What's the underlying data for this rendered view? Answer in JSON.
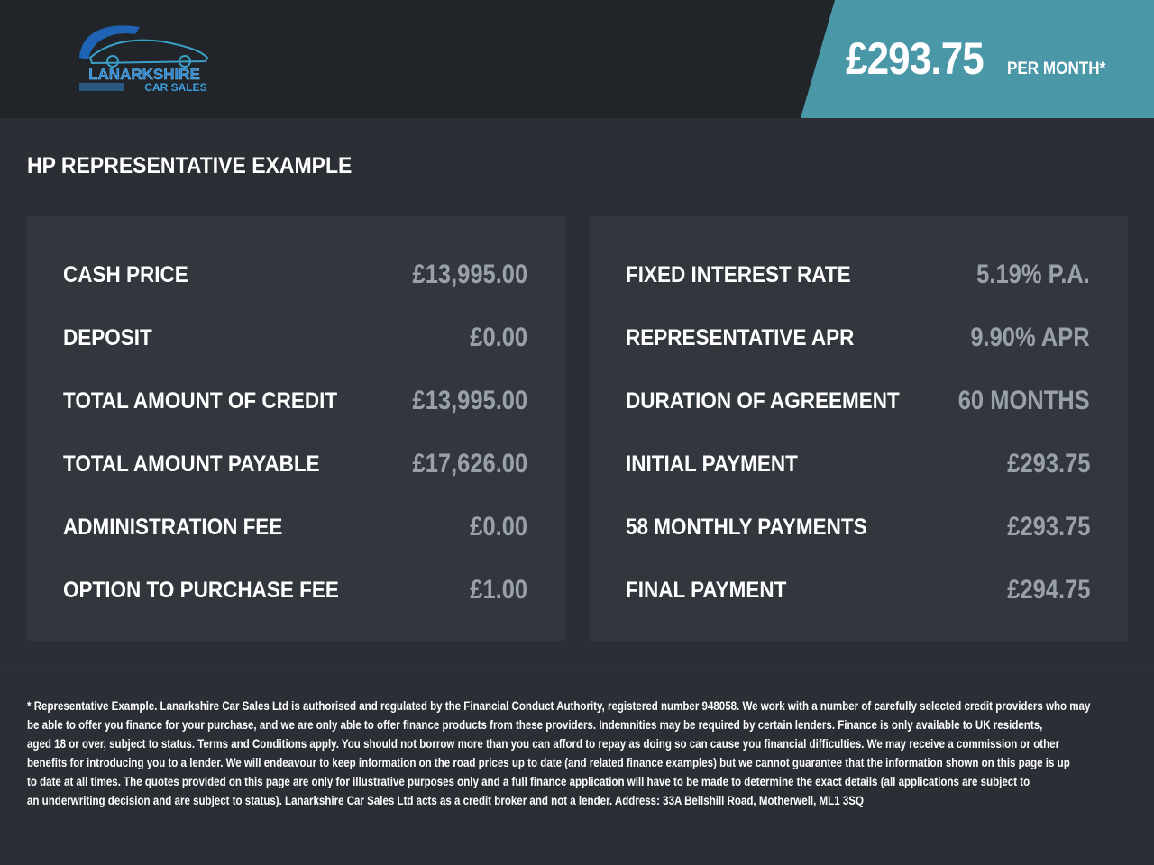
{
  "brand": {
    "name": "LANARKSHIRE",
    "sub": "CAR SALES",
    "accent": "#4a97a8"
  },
  "header": {
    "price": "£293.75",
    "per_month": "PER MONTH*"
  },
  "title": "HP REPRESENTATIVE EXAMPLE",
  "left": [
    {
      "label": "CASH PRICE",
      "value": "£13,995.00"
    },
    {
      "label": "DEPOSIT",
      "value": "£0.00"
    },
    {
      "label": "TOTAL AMOUNT OF CREDIT",
      "value": "£13,995.00"
    },
    {
      "label": "TOTAL AMOUNT PAYABLE",
      "value": "£17,626.00"
    },
    {
      "label": "ADMINISTRATION FEE",
      "value": "£0.00"
    },
    {
      "label": "OPTION TO PURCHASE FEE",
      "value": "£1.00"
    }
  ],
  "right": [
    {
      "label": "FIXED INTEREST RATE",
      "value": "5.19% P.A."
    },
    {
      "label": "REPRESENTATIVE APR",
      "value": "9.90% APR"
    },
    {
      "label": "DURATION OF AGREEMENT",
      "value": "60 MONTHS"
    },
    {
      "label": "INITIAL PAYMENT",
      "value": "£293.75"
    },
    {
      "label": "58 MONTHLY PAYMENTS",
      "value": "£293.75"
    },
    {
      "label": "FINAL PAYMENT",
      "value": "£294.75"
    }
  ],
  "disclaimer": [
    "* Representative Example. Lanarkshire Car Sales Ltd is authorised and regulated by the Financial Conduct Authority, registered number 948058. We work with a number of carefully selected credit providers who may",
    "be able to offer you finance for your purchase, and we are only able to offer finance products from these providers. Indemnities may be required by certain lenders. Finance is only available to UK residents,",
    "aged 18 or over, subject to status. Terms and Conditions apply. You should not borrow more than you can afford to repay as doing so can cause you financial difficulties. We may receive a commission or other",
    "benefits for introducing you to a lender. We will endeavour to keep information on the road prices up to date (and related finance examples) but we cannot guarantee that the information shown on this page is up",
    "to date at all times. The quotes provided on this page are only for illustrative purposes only and a full finance application will have to be made to determine the exact details (all applications are subject to",
    "an underwriting decision and are subject to status). Lanarkshire Car Sales Ltd acts as a credit broker and not a lender. Address: 33A Bellshill Road, Motherwell, ML1 3SQ"
  ]
}
